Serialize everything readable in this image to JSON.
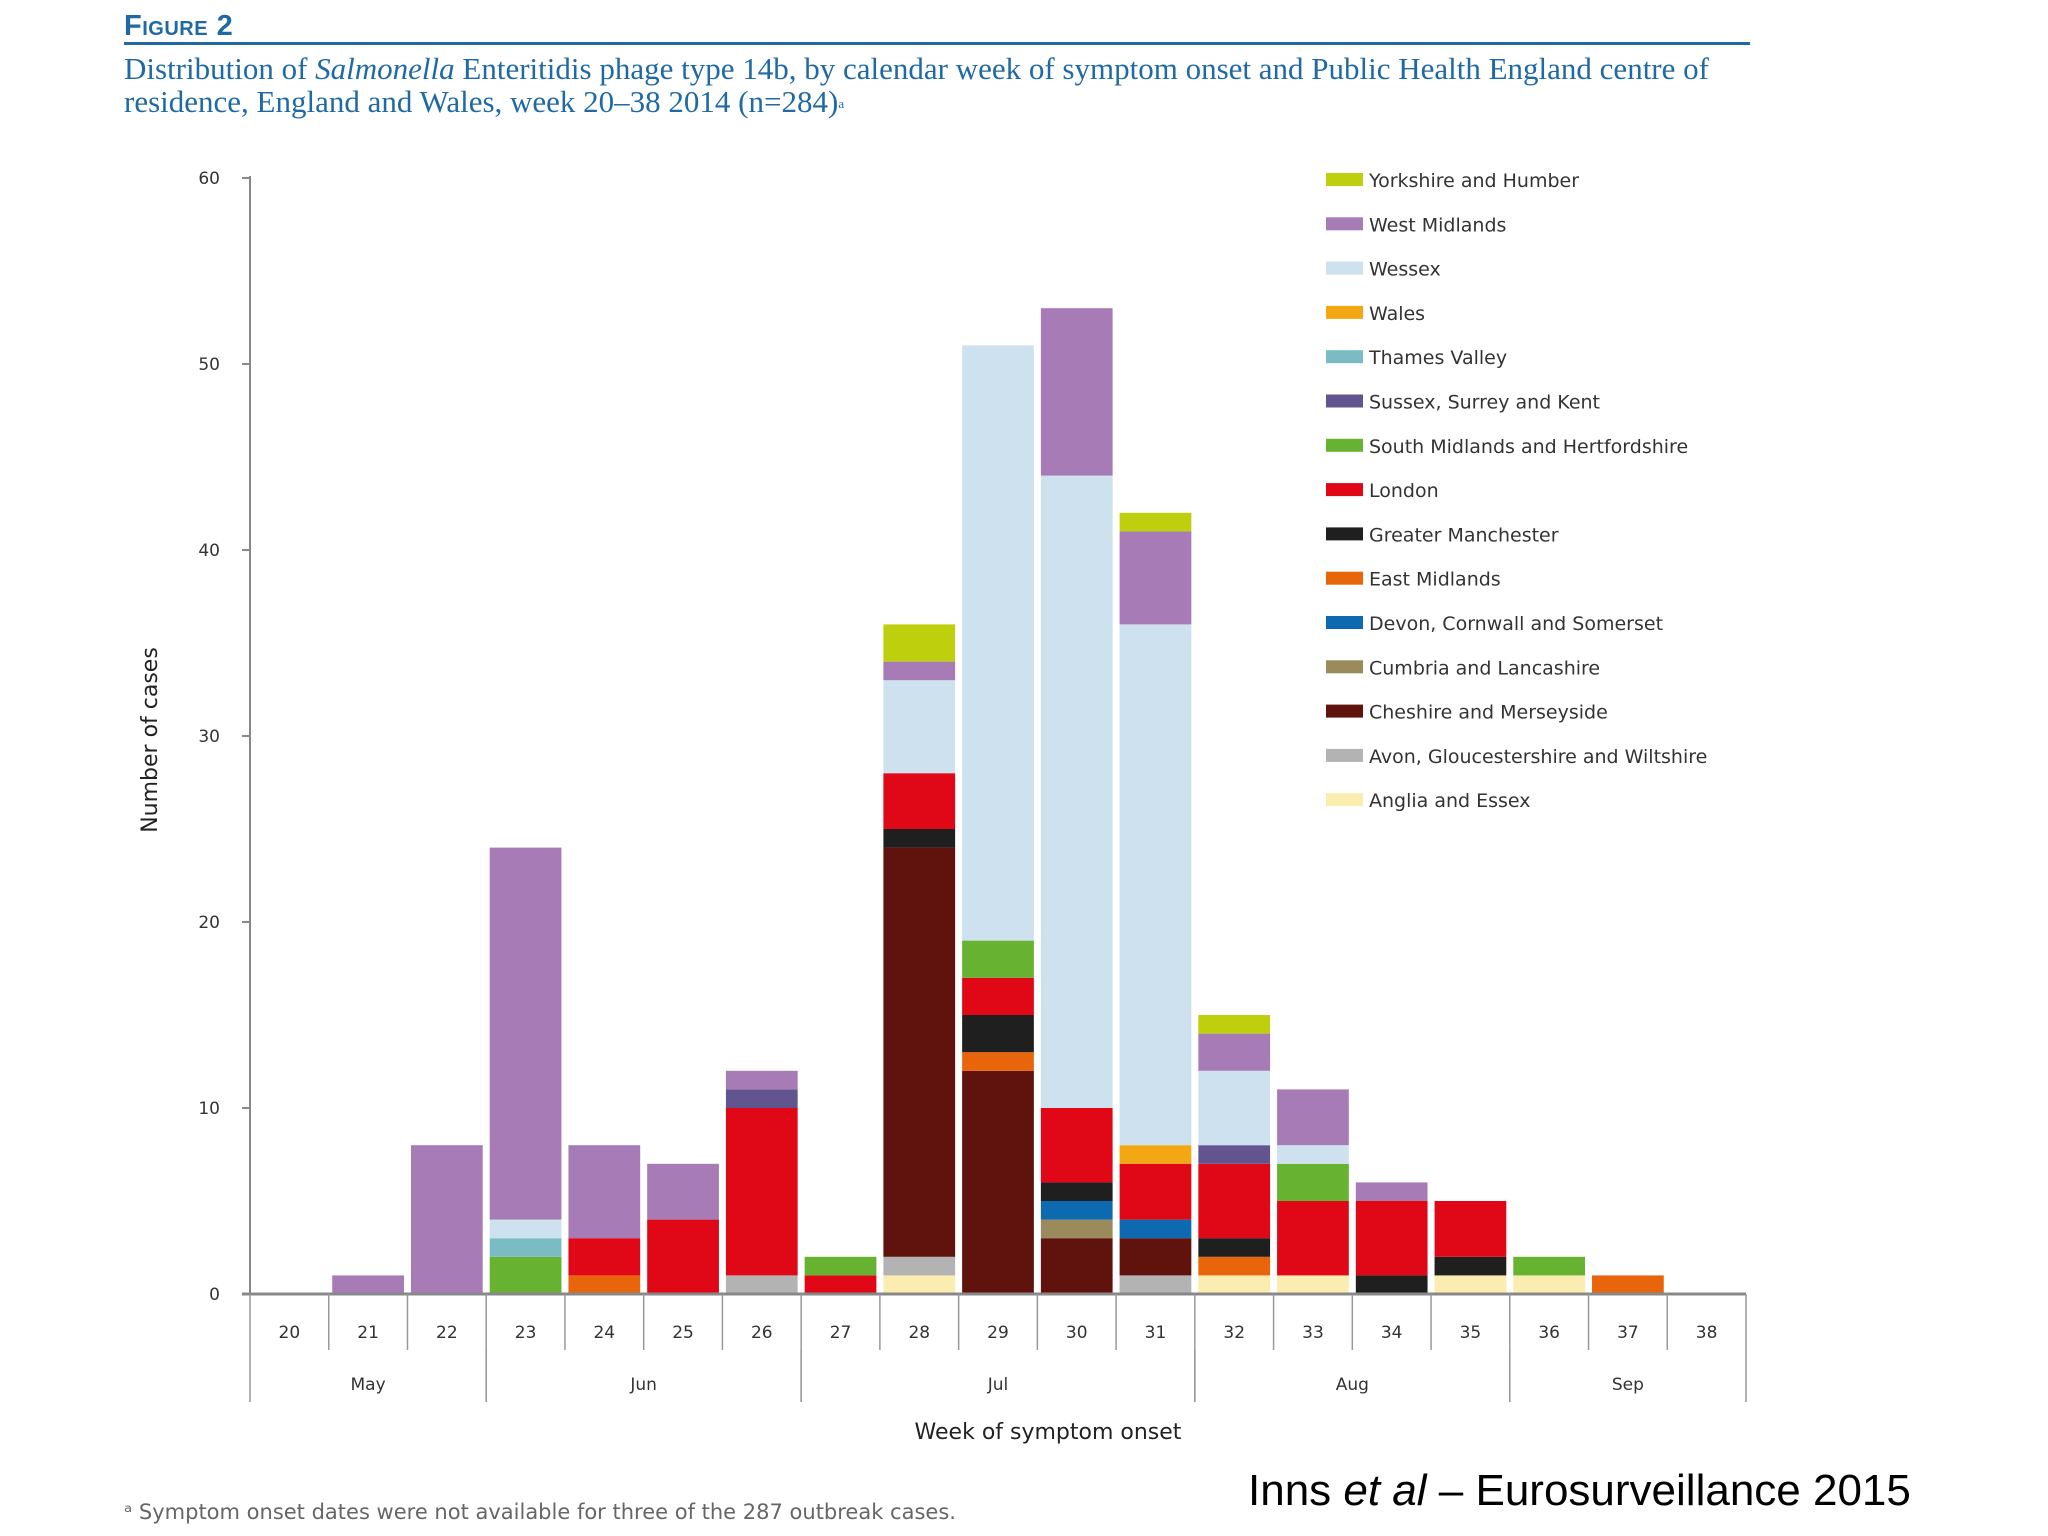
{
  "figure": {
    "label": "Figure 2",
    "title_part1": "Distribution of ",
    "title_italic": "Salmonella",
    "title_part2": " Enteritidis phage type 14b, by calendar week of symptom onset and Public Health England centre of residence, England and Wales, week 20–38 2014 (n=284)",
    "title_footnote_marker": "a",
    "footnote": "ᵃ Symptom onset dates were not available for three of the 287 outbreak cases.",
    "citation_author": "Inns ",
    "citation_italic": "et al",
    "citation_rest": " – Eurosurveillance 2015"
  },
  "chart_data": {
    "type": "bar",
    "stacked": true,
    "title": "Distribution of Salmonella Enteritidis phage type 14b, by calendar week of symptom onset and Public Health England centre of residence, England and Wales, week 20–38 2014 (n=284)",
    "xlabel": "Week of symptom onset",
    "ylabel": "Number of cases",
    "ylim": [
      0,
      60
    ],
    "yticks": [
      0,
      10,
      20,
      30,
      40,
      50,
      60
    ],
    "grid": false,
    "legend_position": "top-right",
    "categories": [
      "20",
      "21",
      "22",
      "23",
      "24",
      "25",
      "26",
      "27",
      "28",
      "29",
      "30",
      "31",
      "32",
      "33",
      "34",
      "35",
      "36",
      "37",
      "38"
    ],
    "months": [
      {
        "label": "May",
        "from": "20",
        "to": "22"
      },
      {
        "label": "Jun",
        "from": "23",
        "to": "26"
      },
      {
        "label": "Jul",
        "from": "27",
        "to": "31"
      },
      {
        "label": "Aug",
        "from": "32",
        "to": "35"
      },
      {
        "label": "Sep",
        "from": "36",
        "to": "38"
      }
    ],
    "series": [
      {
        "name": "Anglia and Essex",
        "color": "#fbedb0",
        "values": [
          0,
          0,
          0,
          0,
          0,
          0,
          0,
          0,
          1,
          0,
          0,
          0,
          1,
          1,
          0,
          1,
          1,
          0,
          0
        ]
      },
      {
        "name": "Avon, Gloucestershire and Wiltshire",
        "color": "#b3b3b3",
        "values": [
          0,
          0,
          0,
          0,
          0,
          0,
          1,
          0,
          1,
          0,
          0,
          1,
          0,
          0,
          0,
          0,
          0,
          0,
          0
        ]
      },
      {
        "name": "Cheshire and Merseyside",
        "color": "#5f130c",
        "values": [
          0,
          0,
          0,
          0,
          0,
          0,
          0,
          0,
          22,
          12,
          3,
          2,
          0,
          0,
          0,
          0,
          0,
          0,
          0
        ]
      },
      {
        "name": "Cumbria and Lancashire",
        "color": "#9b8a5c",
        "values": [
          0,
          0,
          0,
          0,
          0,
          0,
          0,
          0,
          0,
          0,
          1,
          0,
          0,
          0,
          0,
          0,
          0,
          0,
          0
        ]
      },
      {
        "name": "Devon, Cornwall and Somerset",
        "color": "#0d6ab1",
        "values": [
          0,
          0,
          0,
          0,
          0,
          0,
          0,
          0,
          0,
          0,
          1,
          1,
          0,
          0,
          0,
          0,
          0,
          0,
          0
        ]
      },
      {
        "name": "East Midlands",
        "color": "#e8650c",
        "values": [
          0,
          0,
          0,
          0,
          1,
          0,
          0,
          0,
          0,
          1,
          0,
          0,
          1,
          0,
          0,
          0,
          0,
          1,
          0
        ]
      },
      {
        "name": "Greater Manchester",
        "color": "#1f1f1f",
        "values": [
          0,
          0,
          0,
          0,
          0,
          0,
          0,
          0,
          1,
          2,
          1,
          0,
          1,
          0,
          1,
          1,
          0,
          0,
          0
        ]
      },
      {
        "name": "London",
        "color": "#e00717",
        "values": [
          0,
          0,
          0,
          0,
          2,
          4,
          9,
          1,
          3,
          2,
          4,
          3,
          4,
          4,
          4,
          3,
          0,
          0,
          0
        ]
      },
      {
        "name": "South Midlands and Hertfordshire",
        "color": "#67b231",
        "values": [
          0,
          0,
          0,
          2,
          0,
          0,
          0,
          1,
          0,
          2,
          0,
          0,
          0,
          2,
          0,
          0,
          1,
          0,
          0
        ]
      },
      {
        "name": "Sussex, Surrey and Kent",
        "color": "#62558f",
        "values": [
          0,
          0,
          0,
          0,
          0,
          0,
          1,
          0,
          0,
          0,
          0,
          0,
          1,
          0,
          0,
          0,
          0,
          0,
          0
        ]
      },
      {
        "name": "Thames Valley",
        "color": "#7bbcc4",
        "values": [
          0,
          0,
          0,
          1,
          0,
          0,
          0,
          0,
          0,
          0,
          0,
          0,
          0,
          0,
          0,
          0,
          0,
          0,
          0
        ]
      },
      {
        "name": "Wales",
        "color": "#f3a712",
        "values": [
          0,
          0,
          0,
          0,
          0,
          0,
          0,
          0,
          0,
          0,
          0,
          1,
          0,
          0,
          0,
          0,
          0,
          0,
          0
        ]
      },
      {
        "name": "Wessex",
        "color": "#cde1ef",
        "values": [
          0,
          0,
          0,
          1,
          0,
          0,
          0,
          0,
          5,
          32,
          34,
          28,
          4,
          1,
          0,
          0,
          0,
          0,
          0
        ]
      },
      {
        "name": "West Midlands",
        "color": "#a77bb5",
        "values": [
          0,
          1,
          8,
          20,
          5,
          3,
          1,
          0,
          1,
          0,
          9,
          5,
          2,
          3,
          1,
          0,
          0,
          0,
          0
        ]
      },
      {
        "name": "Yorkshire and Humber",
        "color": "#bed00d",
        "values": [
          0,
          0,
          0,
          0,
          0,
          0,
          0,
          0,
          2,
          0,
          0,
          1,
          1,
          0,
          0,
          0,
          0,
          0,
          0
        ]
      }
    ],
    "legend_order": [
      "Yorkshire and Humber",
      "West Midlands",
      "Wessex",
      "Wales",
      "Thames Valley",
      "Sussex, Surrey and Kent",
      "South Midlands and Hertfordshire",
      "London",
      "Greater Manchester",
      "East Midlands",
      "Devon, Cornwall and Somerset",
      "Cumbria and Lancashire",
      "Cheshire and Merseyside",
      "Avon, Gloucestershire and Wiltshire",
      "Anglia and Essex"
    ],
    "totals": [
      0,
      1,
      8,
      24,
      8,
      7,
      12,
      2,
      36,
      51,
      53,
      42,
      15,
      11,
      6,
      5,
      2,
      1,
      0
    ],
    "n": 284
  }
}
